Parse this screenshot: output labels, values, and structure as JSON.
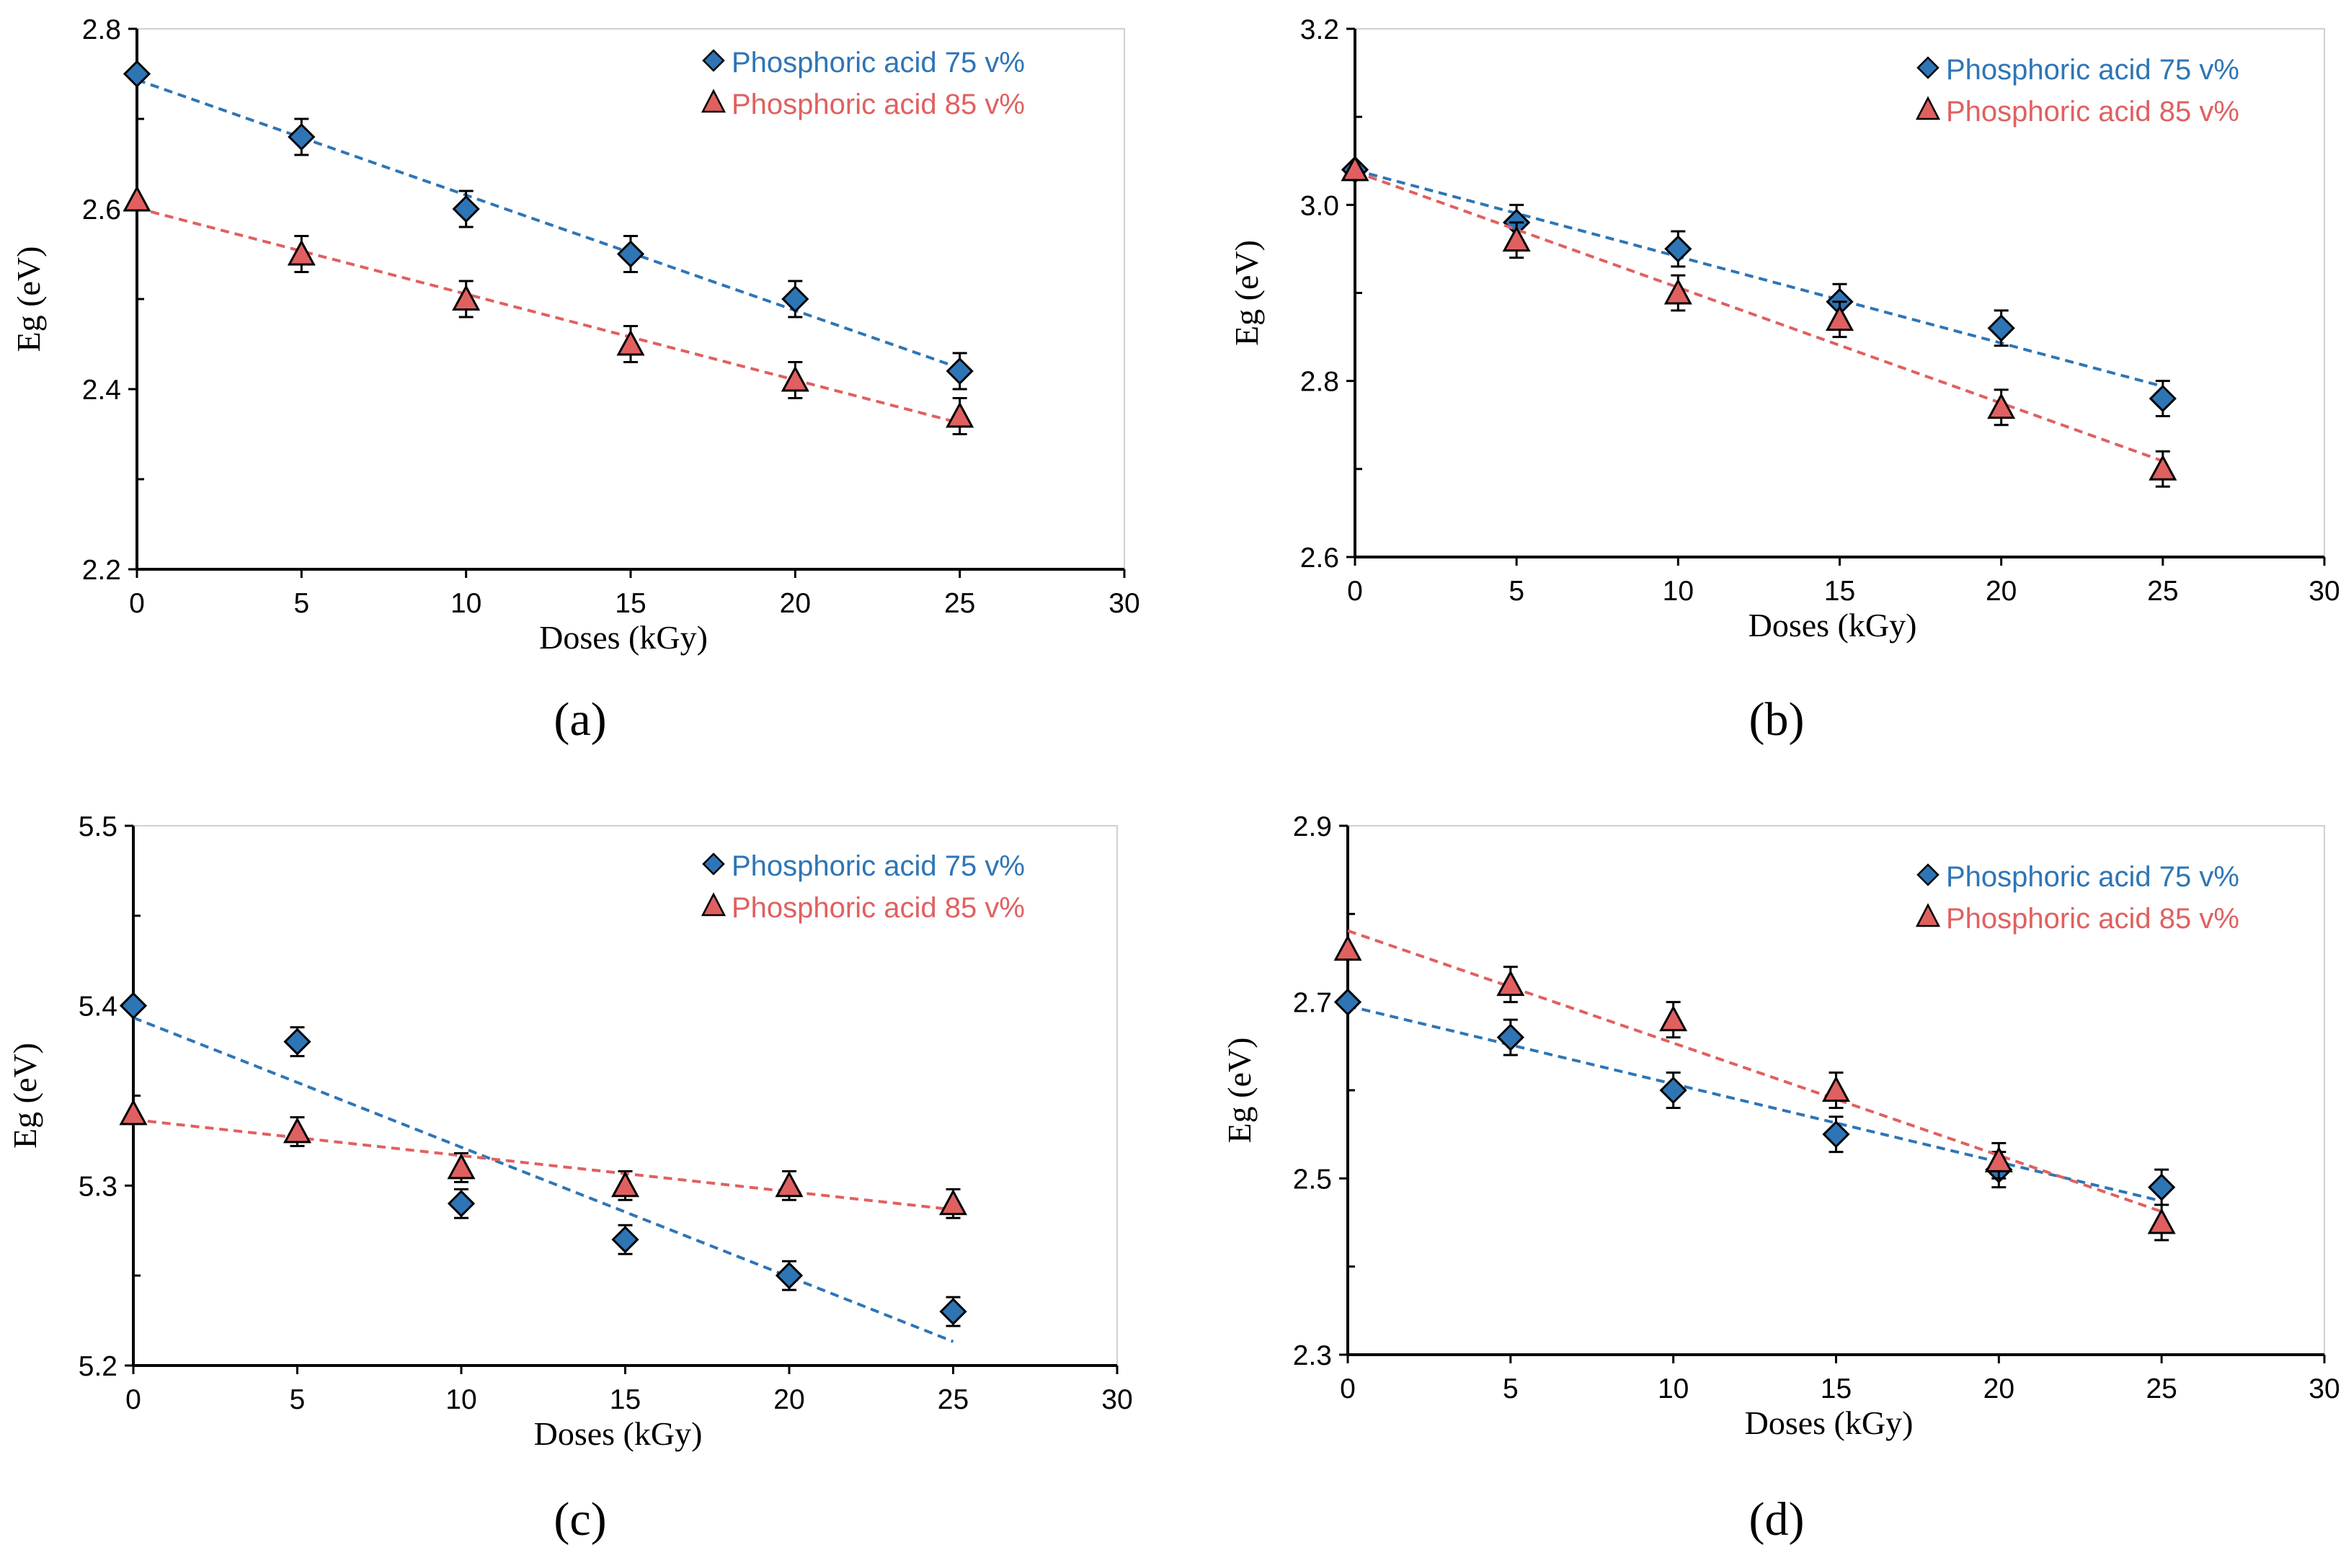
{
  "chart_data": [
    {
      "type": "scatter",
      "panel_label": "(a)",
      "xlabel": "Doses (kGy)",
      "ylabel": "Eg (eV)",
      "xlim": [
        0,
        30
      ],
      "ylim": [
        2.2,
        2.8
      ],
      "xticks": [
        "0",
        "5",
        "10",
        "15",
        "20",
        "25",
        "30"
      ],
      "yticks": [
        "2.2",
        "2.4",
        "2.6",
        "2.8"
      ],
      "grid": false,
      "legend_position": "top-right",
      "series": [
        {
          "name": "Phosphoric acid 75 v%",
          "color": "#2e75b6",
          "marker": "diamond",
          "trendline": "linear",
          "x": [
            0,
            5,
            10,
            15,
            20,
            25
          ],
          "y": [
            2.75,
            2.68,
            2.6,
            2.55,
            2.5,
            2.42
          ],
          "error": 0.02
        },
        {
          "name": "Phosphoric acid 85 v%",
          "color": "#e06060",
          "marker": "triangle",
          "trendline": "linear",
          "x": [
            0,
            5,
            10,
            15,
            20,
            25
          ],
          "y": [
            2.61,
            2.55,
            2.5,
            2.45,
            2.41,
            2.37
          ],
          "error": 0.02
        }
      ]
    },
    {
      "type": "scatter",
      "panel_label": "(b)",
      "xlabel": "Doses (kGy)",
      "ylabel": "Eg (eV)",
      "xlim": [
        0,
        30
      ],
      "ylim": [
        2.6,
        3.2
      ],
      "xticks": [
        "0",
        "5",
        "10",
        "15",
        "20",
        "25",
        "30"
      ],
      "yticks": [
        "2.6",
        "2.8",
        "3.0",
        "3.2"
      ],
      "grid": false,
      "legend_position": "top-right",
      "series": [
        {
          "name": "Phosphoric acid 75 v%",
          "color": "#2e75b6",
          "marker": "diamond",
          "trendline": "linear",
          "x": [
            0,
            5,
            10,
            15,
            20,
            25
          ],
          "y": [
            3.04,
            2.98,
            2.95,
            2.89,
            2.86,
            2.78
          ],
          "error": 0.02
        },
        {
          "name": "Phosphoric acid 85 v%",
          "color": "#e06060",
          "marker": "triangle",
          "trendline": "linear",
          "x": [
            0,
            5,
            10,
            15,
            20,
            25
          ],
          "y": [
            3.04,
            2.96,
            2.9,
            2.87,
            2.77,
            2.7
          ],
          "error": 0.02
        }
      ]
    },
    {
      "type": "scatter",
      "panel_label": "(c)",
      "xlabel": "Doses (kGy)",
      "ylabel": "Eg (eV)",
      "xlim": [
        0,
        30
      ],
      "ylim": [
        5.2,
        5.5
      ],
      "xticks": [
        "0",
        "5",
        "10",
        "15",
        "20",
        "25",
        "30"
      ],
      "yticks": [
        "5.2",
        "5.3",
        "5.4",
        "5.5"
      ],
      "grid": false,
      "legend_position": "top-right",
      "series": [
        {
          "name": "Phosphoric acid 75 v%",
          "color": "#2e75b6",
          "marker": "diamond",
          "trendline": "linear",
          "x": [
            0,
            5,
            10,
            15,
            20,
            25
          ],
          "y": [
            5.4,
            5.38,
            5.29,
            5.27,
            5.25,
            5.23
          ],
          "error": 0.008
        },
        {
          "name": "Phosphoric acid 85 v%",
          "color": "#e06060",
          "marker": "triangle",
          "trendline": "linear",
          "x": [
            0,
            5,
            10,
            15,
            20,
            25
          ],
          "y": [
            5.34,
            5.33,
            5.31,
            5.3,
            5.3,
            5.29
          ],
          "error": 0.008
        }
      ]
    },
    {
      "type": "scatter",
      "panel_label": "(d)",
      "xlabel": "Doses (kGy)",
      "ylabel": "Eg (eV)",
      "xlim": [
        0,
        30
      ],
      "ylim": [
        2.3,
        2.9
      ],
      "xticks": [
        "0",
        "5",
        "10",
        "15",
        "20",
        "25",
        "30"
      ],
      "yticks": [
        "2.3",
        "2.5",
        "2.7",
        "2.9"
      ],
      "grid": false,
      "legend_position": "top-right",
      "series": [
        {
          "name": "Phosphoric acid 75 v%",
          "color": "#2e75b6",
          "marker": "diamond",
          "trendline": "linear",
          "x": [
            0,
            5,
            10,
            15,
            20,
            25
          ],
          "y": [
            2.7,
            2.66,
            2.6,
            2.55,
            2.51,
            2.49
          ],
          "error": 0.02
        },
        {
          "name": "Phosphoric acid 85 v%",
          "color": "#e06060",
          "marker": "triangle",
          "trendline": "linear",
          "x": [
            0,
            5,
            10,
            15,
            20,
            25
          ],
          "y": [
            2.76,
            2.72,
            2.68,
            2.6,
            2.52,
            2.45
          ],
          "error": 0.02
        }
      ]
    }
  ]
}
